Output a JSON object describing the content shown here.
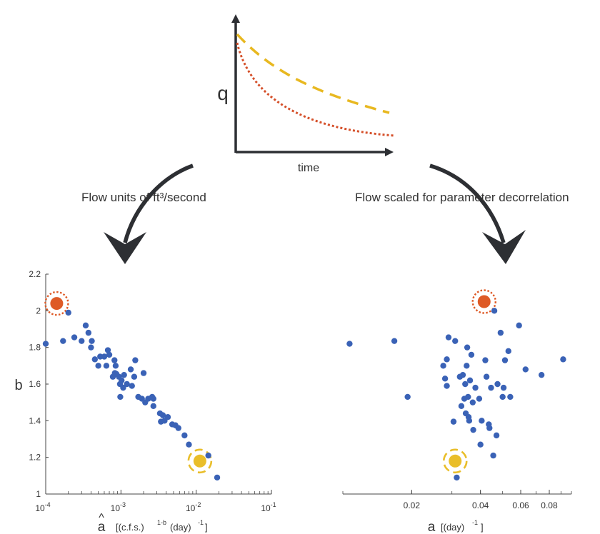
{
  "diagram": {
    "inset": {
      "ylabel": "q",
      "xlabel": "time",
      "colors": {
        "dashed": "#e8b820",
        "dotted": "#d5502a",
        "axis": "#2d2f33"
      }
    },
    "left_branch": {
      "label": "Flow units of ft³/second"
    },
    "right_branch": {
      "label": "Flow scaled for parameter decorrelation"
    },
    "colors": {
      "point": "#3a62b6",
      "highlight_orange": "#de5a26",
      "highlight_yellow": "#e9be2a",
      "arrow": "#2d2f33"
    }
  },
  "chart_data": [
    {
      "type": "scatter",
      "xlabel": "â  [(c.f.s.)^(1-b) (day)^-1]",
      "xlabel_text": "[(c.f.s.)",
      "xlabel_sup": "1-b",
      "xlabel_text2": "(day)",
      "xlabel_sup2": "-1",
      "xlabel_symbol": "a",
      "ylabel": "b",
      "xscale": "log",
      "xlim": [
        0.0001,
        0.1
      ],
      "ylim": [
        1,
        2.2
      ],
      "xticks": [
        {
          "value": 0.0001,
          "base": "10",
          "exp": "-4"
        },
        {
          "value": 0.001,
          "base": "10",
          "exp": "-3"
        },
        {
          "value": 0.01,
          "base": "10",
          "exp": "-2"
        },
        {
          "value": 0.1,
          "base": "10",
          "exp": "-1"
        }
      ],
      "yticks": [
        "1",
        "1.2",
        "1.4",
        "1.6",
        "1.8",
        "2",
        "2.2"
      ],
      "highlights": [
        {
          "x": 0.00014,
          "y": 2.04,
          "color": "orange",
          "ring": "dotted"
        },
        {
          "x": 0.0112,
          "y": 1.18,
          "color": "yellow",
          "ring": "dashed"
        }
      ],
      "points": [
        {
          "x": 0.0001,
          "y": 1.82
        },
        {
          "x": 0.00017,
          "y": 1.835
        },
        {
          "x": 0.0002,
          "y": 1.99
        },
        {
          "x": 0.00024,
          "y": 1.855
        },
        {
          "x": 0.0003,
          "y": 1.835
        },
        {
          "x": 0.00034,
          "y": 1.92
        },
        {
          "x": 0.00037,
          "y": 1.88
        },
        {
          "x": 0.0004,
          "y": 1.8
        },
        {
          "x": 0.00041,
          "y": 1.835
        },
        {
          "x": 0.00045,
          "y": 1.735
        },
        {
          "x": 0.0005,
          "y": 1.7
        },
        {
          "x": 0.00053,
          "y": 1.75
        },
        {
          "x": 0.0006,
          "y": 1.75
        },
        {
          "x": 0.00064,
          "y": 1.7
        },
        {
          "x": 0.00067,
          "y": 1.785
        },
        {
          "x": 0.0007,
          "y": 1.76
        },
        {
          "x": 0.00078,
          "y": 1.64
        },
        {
          "x": 0.00082,
          "y": 1.73
        },
        {
          "x": 0.00083,
          "y": 1.66
        },
        {
          "x": 0.00085,
          "y": 1.7
        },
        {
          "x": 0.00087,
          "y": 1.655
        },
        {
          "x": 0.00094,
          "y": 1.64
        },
        {
          "x": 0.00097,
          "y": 1.6
        },
        {
          "x": 0.00098,
          "y": 1.53
        },
        {
          "x": 0.00102,
          "y": 1.62
        },
        {
          "x": 0.00107,
          "y": 1.58
        },
        {
          "x": 0.0011,
          "y": 1.65
        },
        {
          "x": 0.0012,
          "y": 1.6
        },
        {
          "x": 0.00135,
          "y": 1.68
        },
        {
          "x": 0.0014,
          "y": 1.59
        },
        {
          "x": 0.0015,
          "y": 1.64
        },
        {
          "x": 0.00155,
          "y": 1.73
        },
        {
          "x": 0.0017,
          "y": 1.53
        },
        {
          "x": 0.0019,
          "y": 1.52
        },
        {
          "x": 0.002,
          "y": 1.66
        },
        {
          "x": 0.0021,
          "y": 1.5
        },
        {
          "x": 0.0023,
          "y": 1.52
        },
        {
          "x": 0.0026,
          "y": 1.53
        },
        {
          "x": 0.0027,
          "y": 1.52
        },
        {
          "x": 0.0027,
          "y": 1.48
        },
        {
          "x": 0.0033,
          "y": 1.44
        },
        {
          "x": 0.0034,
          "y": 1.395
        },
        {
          "x": 0.0036,
          "y": 1.43
        },
        {
          "x": 0.0038,
          "y": 1.4
        },
        {
          "x": 0.0042,
          "y": 1.42
        },
        {
          "x": 0.0048,
          "y": 1.38
        },
        {
          "x": 0.0053,
          "y": 1.375
        },
        {
          "x": 0.0058,
          "y": 1.36
        },
        {
          "x": 0.007,
          "y": 1.32
        },
        {
          "x": 0.008,
          "y": 1.27
        },
        {
          "x": 0.0145,
          "y": 1.21
        },
        {
          "x": 0.019,
          "y": 1.09
        }
      ]
    },
    {
      "type": "scatter",
      "xlabel": "a [(day)^-1]",
      "xlabel_symbol": "a",
      "xlabel_text": "[(day)",
      "xlabel_sup": "-1",
      "xlabel_text2": "]",
      "xscale": "log",
      "xlim": [
        0.01,
        0.1
      ],
      "ylim": [
        1,
        2.2
      ],
      "xticks": [
        {
          "value": 0.02,
          "label": "0.02"
        },
        {
          "value": 0.04,
          "label": "0.04"
        },
        {
          "value": 0.06,
          "label": "0.06"
        },
        {
          "value": 0.08,
          "label": "0.08"
        }
      ],
      "highlights": [
        {
          "x": 0.0415,
          "y": 2.05,
          "color": "orange",
          "ring": "dotted"
        },
        {
          "x": 0.031,
          "y": 1.18,
          "color": "yellow",
          "ring": "dashed"
        }
      ],
      "points": [
        {
          "x": 0.0107,
          "y": 1.82
        },
        {
          "x": 0.0168,
          "y": 1.835
        },
        {
          "x": 0.0192,
          "y": 1.53
        },
        {
          "x": 0.0275,
          "y": 1.7
        },
        {
          "x": 0.028,
          "y": 1.63
        },
        {
          "x": 0.0285,
          "y": 1.735
        },
        {
          "x": 0.0285,
          "y": 1.59
        },
        {
          "x": 0.029,
          "y": 1.855
        },
        {
          "x": 0.0305,
          "y": 1.395
        },
        {
          "x": 0.031,
          "y": 1.835
        },
        {
          "x": 0.0315,
          "y": 1.09
        },
        {
          "x": 0.0325,
          "y": 1.64
        },
        {
          "x": 0.033,
          "y": 1.48
        },
        {
          "x": 0.0335,
          "y": 1.65
        },
        {
          "x": 0.034,
          "y": 1.52
        },
        {
          "x": 0.0343,
          "y": 1.6
        },
        {
          "x": 0.0345,
          "y": 1.44
        },
        {
          "x": 0.0348,
          "y": 1.7
        },
        {
          "x": 0.035,
          "y": 1.8
        },
        {
          "x": 0.0353,
          "y": 1.53
        },
        {
          "x": 0.0355,
          "y": 1.42
        },
        {
          "x": 0.0357,
          "y": 1.4
        },
        {
          "x": 0.036,
          "y": 1.62
        },
        {
          "x": 0.0365,
          "y": 1.76
        },
        {
          "x": 0.037,
          "y": 1.5
        },
        {
          "x": 0.0372,
          "y": 1.35
        },
        {
          "x": 0.038,
          "y": 1.58
        },
        {
          "x": 0.0395,
          "y": 1.52
        },
        {
          "x": 0.04,
          "y": 1.27
        },
        {
          "x": 0.0405,
          "y": 1.4
        },
        {
          "x": 0.042,
          "y": 1.73
        },
        {
          "x": 0.0425,
          "y": 1.64
        },
        {
          "x": 0.0435,
          "y": 1.38
        },
        {
          "x": 0.0438,
          "y": 1.36
        },
        {
          "x": 0.0445,
          "y": 1.58
        },
        {
          "x": 0.0455,
          "y": 1.21
        },
        {
          "x": 0.046,
          "y": 2.0
        },
        {
          "x": 0.047,
          "y": 1.32
        },
        {
          "x": 0.0475,
          "y": 1.6
        },
        {
          "x": 0.049,
          "y": 1.88
        },
        {
          "x": 0.05,
          "y": 1.53
        },
        {
          "x": 0.0505,
          "y": 1.58
        },
        {
          "x": 0.0512,
          "y": 1.73
        },
        {
          "x": 0.053,
          "y": 1.78
        },
        {
          "x": 0.054,
          "y": 1.53
        },
        {
          "x": 0.059,
          "y": 1.92
        },
        {
          "x": 0.063,
          "y": 1.68
        },
        {
          "x": 0.074,
          "y": 1.65
        },
        {
          "x": 0.092,
          "y": 1.735
        }
      ]
    }
  ]
}
